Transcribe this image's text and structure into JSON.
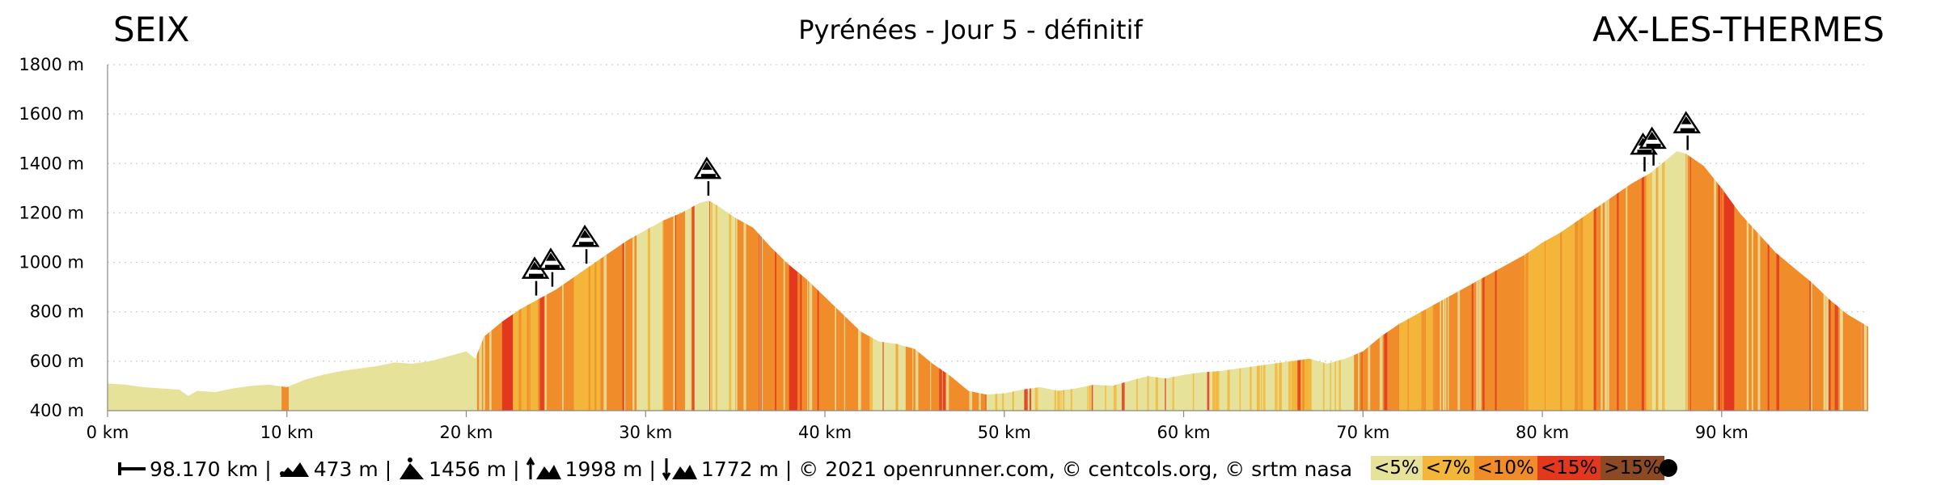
{
  "header": {
    "start": "SEIX",
    "title": "Pyrénées - Jour 5 - définitif",
    "end": "AX-LES-THERMES"
  },
  "chart_data": {
    "type": "area",
    "xlabel": "",
    "ylabel": "",
    "xlim": [
      0,
      98.17
    ],
    "ylim": [
      400,
      1800
    ],
    "x_ticks": [
      0,
      10,
      20,
      30,
      40,
      50,
      60,
      70,
      80,
      90
    ],
    "x_tick_labels": [
      "0 km",
      "10 km",
      "20 km",
      "30 km",
      "40 km",
      "50 km",
      "60 km",
      "70 km",
      "80 km",
      "90 km"
    ],
    "y_ticks": [
      400,
      600,
      800,
      1000,
      1200,
      1400,
      1600,
      1800
    ],
    "y_tick_labels": [
      "400 m",
      "600 m",
      "800 m",
      "1000 m",
      "1200 m",
      "1400 m",
      "1600 m",
      "1800 m"
    ],
    "grid": "horizontal dotted",
    "profile": {
      "distance_km": [
        0,
        1,
        2,
        3,
        4,
        4.5,
        5,
        6,
        7,
        8,
        9,
        10,
        11,
        12,
        13,
        14,
        15,
        16,
        17,
        18,
        19,
        20,
        20.5,
        21,
        22,
        23,
        24,
        25,
        26,
        27,
        28,
        29,
        30,
        31,
        32,
        33,
        33.5,
        34,
        35,
        36,
        37,
        38,
        39,
        40,
        41,
        42,
        43,
        44,
        45,
        46,
        47,
        48,
        49,
        50,
        51,
        52,
        53,
        54,
        55,
        56,
        57,
        58,
        59,
        60,
        61,
        62,
        63,
        64,
        65,
        66,
        67,
        68,
        69,
        70,
        71,
        72,
        73,
        74,
        75,
        76,
        77,
        78,
        79,
        80,
        81,
        82,
        83,
        84,
        85,
        86,
        87,
        87.5,
        88,
        89,
        90,
        91,
        92,
        93,
        94,
        95,
        96,
        97,
        98.17
      ],
      "elevation_m": [
        510,
        505,
        495,
        490,
        485,
        460,
        480,
        475,
        490,
        500,
        505,
        495,
        525,
        545,
        560,
        570,
        580,
        595,
        590,
        600,
        620,
        640,
        610,
        700,
        760,
        810,
        850,
        890,
        940,
        990,
        1040,
        1090,
        1130,
        1170,
        1200,
        1240,
        1250,
        1230,
        1180,
        1140,
        1060,
        990,
        930,
        860,
        790,
        720,
        680,
        670,
        650,
        590,
        540,
        480,
        465,
        470,
        485,
        495,
        480,
        490,
        505,
        500,
        520,
        540,
        530,
        545,
        555,
        560,
        570,
        580,
        590,
        600,
        610,
        590,
        610,
        640,
        700,
        750,
        790,
        830,
        870,
        910,
        950,
        990,
        1030,
        1080,
        1120,
        1170,
        1220,
        1270,
        1320,
        1360,
        1420,
        1450,
        1440,
        1390,
        1300,
        1200,
        1120,
        1040,
        980,
        920,
        850,
        790,
        740
      ]
    },
    "gradient_bands": [
      {
        "from": 0,
        "to": 9.7,
        "class": "<5%"
      },
      {
        "from": 9.7,
        "to": 10.1,
        "class": "<10%"
      },
      {
        "from": 10.1,
        "to": 20.6,
        "class": "<5%"
      },
      {
        "from": 20.6,
        "to": 22,
        "class": "<10%"
      },
      {
        "from": 22,
        "to": 22.6,
        "class": "<15%"
      },
      {
        "from": 22.6,
        "to": 24,
        "class": "<7%"
      },
      {
        "from": 24,
        "to": 26,
        "class": "<10%"
      },
      {
        "from": 26,
        "to": 27.5,
        "class": "<7%"
      },
      {
        "from": 27.5,
        "to": 29.5,
        "class": "<10%"
      },
      {
        "from": 29.5,
        "to": 31,
        "class": "<5%"
      },
      {
        "from": 31,
        "to": 32.2,
        "class": "<10%"
      },
      {
        "from": 32.2,
        "to": 33.6,
        "class": "<5%"
      },
      {
        "from": 33.6,
        "to": 35,
        "class": "<5%"
      },
      {
        "from": 35,
        "to": 38,
        "class": "<10%"
      },
      {
        "from": 38,
        "to": 38.7,
        "class": "<15%"
      },
      {
        "from": 38.7,
        "to": 42.5,
        "class": "<10%"
      },
      {
        "from": 42.5,
        "to": 44.5,
        "class": "<5%"
      },
      {
        "from": 44.5,
        "to": 49,
        "class": "<10%"
      },
      {
        "from": 49,
        "to": 66,
        "class": "<5%"
      },
      {
        "from": 66,
        "to": 67,
        "class": "<7%"
      },
      {
        "from": 67,
        "to": 69.5,
        "class": "<5%"
      },
      {
        "from": 69.5,
        "to": 72,
        "class": "<10%"
      },
      {
        "from": 72,
        "to": 74,
        "class": "<7%"
      },
      {
        "from": 74,
        "to": 79,
        "class": "<10%"
      },
      {
        "from": 79,
        "to": 83,
        "class": "<7%"
      },
      {
        "from": 83,
        "to": 85.8,
        "class": "<10%"
      },
      {
        "from": 85.8,
        "to": 88,
        "class": "<5%"
      },
      {
        "from": 88,
        "to": 89.8,
        "class": "<10%"
      },
      {
        "from": 89.8,
        "to": 90.7,
        "class": "<15%"
      },
      {
        "from": 90.7,
        "to": 98.17,
        "class": "<10%"
      }
    ],
    "summit_markers_km": [
      23.9,
      24.8,
      26.7,
      33.5,
      85.7,
      86.2,
      88.1
    ]
  },
  "footer": {
    "distance": "98.170 km",
    "min_alt": "473 m",
    "max_alt": "1456 m",
    "ascent": "1998 m",
    "descent": "1772 m",
    "credits": "© 2021 openrunner.com, © centcols.org, © srtm nasa"
  },
  "legend": [
    {
      "label": "<5%",
      "color": "#e6e29a"
    },
    {
      "label": "<7%",
      "color": "#f3b63a"
    },
    {
      "label": "<10%",
      "color": "#f08c2a"
    },
    {
      "label": "<15%",
      "color": "#e2381e"
    },
    {
      "label": ">15%",
      "color": "#8b4a24"
    }
  ]
}
